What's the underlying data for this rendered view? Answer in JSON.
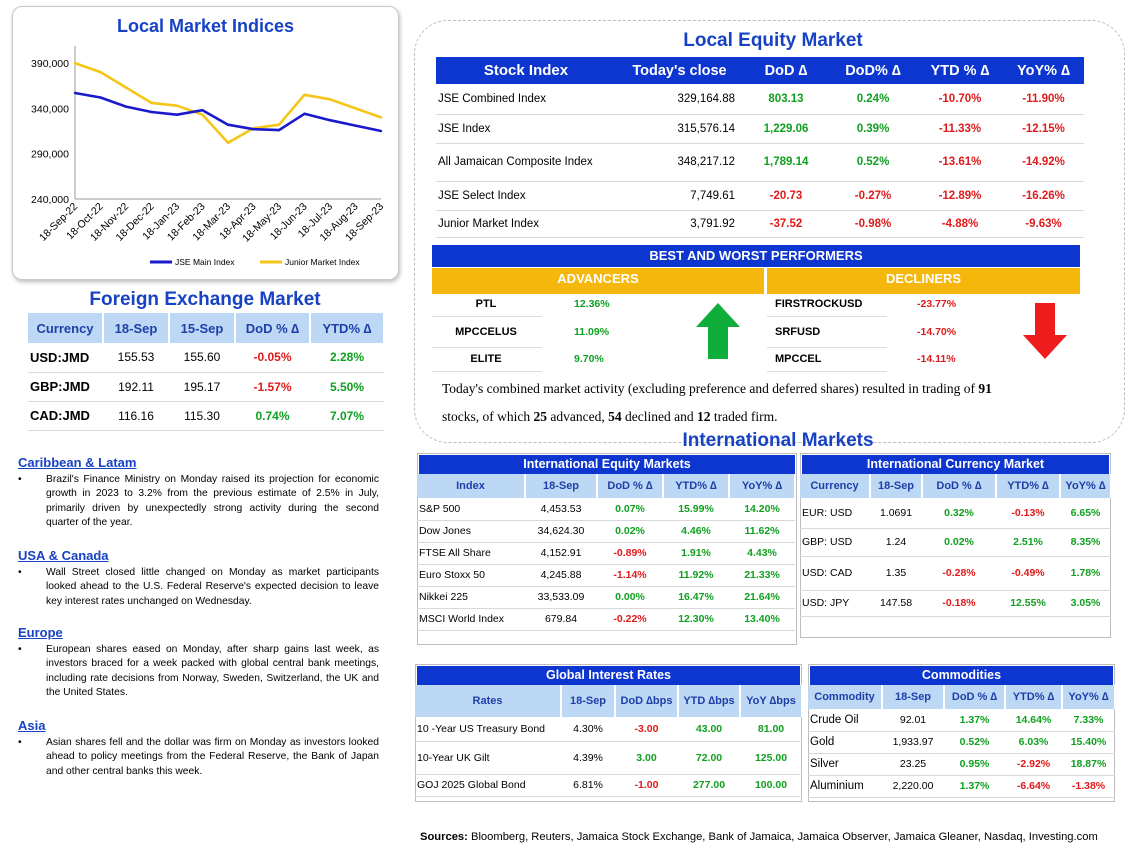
{
  "chart": {
    "title": "Local Market Indices",
    "chart_data": {
      "type": "line",
      "x": [
        "18-Sep-22",
        "18-Oct-22",
        "18-Nov-22",
        "18-Dec-22",
        "18-Jan-23",
        "18-Feb-23",
        "18-Mar-23",
        "18-Apr-23",
        "18-May-23",
        "18-Jun-23",
        "18-Jul-23",
        "18-Aug-23",
        "18-Sep-23"
      ],
      "ylim": [
        240000,
        400000
      ],
      "yticks": [
        "390,000",
        "340,000",
        "290,000",
        "240,000"
      ],
      "ytick_values": [
        390000,
        340000,
        290000,
        240000
      ],
      "series": [
        {
          "name": "JSE Main Index",
          "color": "#1a1acc",
          "values": [
            357000,
            352000,
            342000,
            336000,
            333000,
            338000,
            322000,
            317000,
            316000,
            334000,
            327000,
            321000,
            315000
          ]
        },
        {
          "name": "Junior Market Index",
          "color": "#f5c518",
          "values": [
            390000,
            380000,
            363000,
            346000,
            343000,
            333000,
            302000,
            318000,
            322000,
            355000,
            350000,
            340000,
            330000
          ]
        }
      ],
      "legend": "bottom",
      "grid": false
    }
  },
  "equity": {
    "title": "Local Equity Market",
    "headers": [
      "Stock Index",
      "Today's close",
      "DoD  ∆",
      "DoD% ∆",
      "YTD % ∆",
      "YoY% ∆"
    ],
    "rows": [
      [
        "JSE Combined Index",
        "329,164.88",
        "803.13",
        "0.24%",
        "-10.70%",
        "-11.90%"
      ],
      [
        "JSE Index",
        "315,576.14",
        "1,229.06",
        "0.39%",
        "-11.33%",
        "-12.15%"
      ],
      [
        "All Jamaican Composite Index",
        "348,217.12",
        "1,789.14",
        "0.52%",
        "-13.61%",
        "-14.92%"
      ],
      [
        "JSE Select Index",
        "7,749.61",
        "-20.73",
        "-0.27%",
        "-12.89%",
        "-16.26%"
      ],
      [
        "Junior Market Index",
        "3,791.92",
        "-37.52",
        "-0.98%",
        "-4.88%",
        "-9.63%"
      ]
    ]
  },
  "performers": {
    "title": "BEST AND WORST PERFORMERS",
    "adv_label": "ADVANCERS",
    "dec_label": "DECLINERS",
    "advancers": [
      [
        "PTL",
        "12.36%"
      ],
      [
        "MPCCELUS",
        "11.09%"
      ],
      [
        "ELITE",
        "9.70%"
      ]
    ],
    "decliners": [
      [
        "FIRSTROCKUSD",
        "-23.77%"
      ],
      [
        "SRFUSD",
        "-14.70%"
      ],
      [
        "MPCCEL",
        "-14.11%"
      ]
    ],
    "up_color": "#0fae3a",
    "down_color": "#ee1c1c"
  },
  "summary": {
    "p1": "Today's combined market activity (excluding preference and deferred shares) resulted in trading of ",
    "n1": "91",
    "p2": "stocks, of which ",
    "n2": "25",
    "p3": " advanced, ",
    "n3": "54",
    "p4": " declined and ",
    "n4": "12",
    "p5": " traded firm."
  },
  "fx": {
    "title": "Foreign Exchange Market",
    "headers": [
      "Currency",
      "18-Sep",
      "15-Sep",
      "DoD % ∆",
      "YTD% ∆"
    ],
    "rows": [
      [
        "USD:JMD",
        "155.53",
        "155.60",
        "-0.05%",
        "2.28%"
      ],
      [
        "GBP:JMD",
        "192.11",
        "195.17",
        "-1.57%",
        "5.50%"
      ],
      [
        "CAD:JMD",
        "116.16",
        "115.30",
        "0.74%",
        "7.07%"
      ]
    ]
  },
  "news": [
    {
      "heading": "Caribbean & Latam",
      "text": "Brazil's Finance Ministry on Monday raised its projection for economic growth in 2023 to 3.2% from the previous estimate of 2.5% in July, primarily driven by unexpectedly strong activity during the second quarter of the year."
    },
    {
      "heading": "USA & Canada",
      "text": "Wall Street closed little changed on Monday as market participants looked ahead to the U.S. Federal Reserve's expected decision to leave key interest rates unchanged on Wednesday."
    },
    {
      "heading": "Europe",
      "text": "European shares eased on Monday, after sharp gains last week, as investors braced for a week packed with global central bank meetings, including rate decisions from Norway, Sweden, Switzerland, the UK and the United States."
    },
    {
      "heading": "Asia",
      "text": "Asian shares fell and the dollar was firm on Monday as investors looked ahead to policy meetings from the Federal Reserve, the Bank of Japan and other central banks this week."
    }
  ],
  "intl_title": "International Markets",
  "ieq": {
    "title": "International Equity Markets",
    "headers": [
      "Index",
      "18-Sep",
      "DoD % ∆",
      "YTD% ∆",
      "YoY% ∆"
    ],
    "rows": [
      [
        "S&P 500",
        "4,453.53",
        "0.07%",
        "15.99%",
        "14.20%"
      ],
      [
        "Dow Jones",
        "34,624.30",
        "0.02%",
        "4.46%",
        "11.62%"
      ],
      [
        "FTSE All Share",
        "4,152.91",
        "-0.89%",
        "1.91%",
        "4.43%"
      ],
      [
        "Euro Stoxx 50",
        "4,245.88",
        "-1.14%",
        "11.92%",
        "21.33%"
      ],
      [
        "Nikkei 225",
        "33,533.09",
        "0.00%",
        "16.47%",
        "21.64%"
      ],
      [
        "MSCI World Index",
        "679.84",
        "-0.22%",
        "12.30%",
        "13.40%"
      ]
    ]
  },
  "icur": {
    "title": "International Currency Market",
    "headers": [
      "Currency",
      "18-Sep",
      "DoD % ∆",
      "YTD% ∆",
      "YoY% ∆"
    ],
    "rows": [
      [
        "EUR: USD",
        "1.0691",
        "0.32%",
        "-0.13%",
        "6.65%"
      ],
      [
        "GBP: USD",
        "1.24",
        "0.02%",
        "2.51%",
        "8.35%"
      ],
      [
        "USD: CAD",
        "1.35",
        "-0.28%",
        "-0.49%",
        "1.78%"
      ],
      [
        "USD: JPY",
        "147.58",
        "-0.18%",
        "12.55%",
        "3.05%"
      ]
    ]
  },
  "rates": {
    "title": "Global Interest Rates",
    "headers": [
      "Rates",
      "18-Sep",
      "DoD ∆bps",
      "YTD ∆bps",
      "YoY ∆bps"
    ],
    "rows": [
      [
        "10 -Year US Treasury Bond",
        "4.30%",
        "-3.00",
        "43.00",
        "81.00"
      ],
      [
        "10-Year UK Gilt",
        "4.39%",
        "3.00",
        "72.00",
        "125.00"
      ],
      [
        "GOJ 2025 Global Bond",
        "6.81%",
        "-1.00",
        "277.00",
        "100.00"
      ]
    ]
  },
  "comm": {
    "title": "Commodities",
    "headers": [
      "Commodity",
      "18-Sep",
      "DoD % ∆",
      "YTD% ∆",
      "YoY% ∆"
    ],
    "rows": [
      [
        "Crude Oil",
        "92.01",
        "1.37%",
        "14.64%",
        "7.33%"
      ],
      [
        "Gold",
        "1,933.97",
        "0.52%",
        "6.03%",
        "15.40%"
      ],
      [
        "Silver",
        "23.25",
        "0.95%",
        "-2.92%",
        "18.87%"
      ],
      [
        "Aluminium",
        "2,220.00",
        "1.37%",
        "-6.64%",
        "-1.38%"
      ]
    ]
  },
  "sources": {
    "label": "Sources:",
    "text": " Bloomberg, Reuters, Jamaica Stock Exchange, Bank of Jamaica, Jamaica Observer, Jamaica Gleaner, Nasdaq, Investing.com"
  }
}
